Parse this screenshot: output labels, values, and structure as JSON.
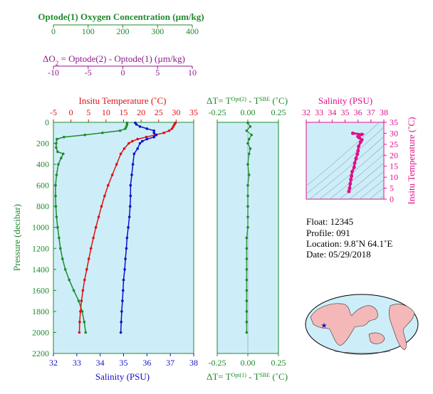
{
  "colors": {
    "oxygen": "#1e8a2c",
    "do2": "#8b1a8b",
    "temperature": "#e01010",
    "salinity": "#1010cc",
    "panel_bg": "#cdeef8",
    "ts": "#e0108a",
    "grid": "#8aa7b5"
  },
  "oxygen_axis": {
    "label": "Optode(1) Oxygen Concentration (µm/kg)",
    "ticks": [
      "0",
      "100",
      "200",
      "300",
      "400"
    ]
  },
  "do2_axis": {
    "label": "ΔO",
    "label_sub": "2",
    "label_rest": " = Optode(2) - Optode(1)    (µm/kg)",
    "ticks": [
      "-10",
      "-5",
      "0",
      "5",
      "10"
    ]
  },
  "temp_axis": {
    "label": "Insitu Temperature (˚C)",
    "ticks": [
      "-5",
      "0",
      "5",
      "10",
      "15",
      "20",
      "25",
      "30",
      "35"
    ]
  },
  "sal_axis": {
    "label": "Salinity (PSU)",
    "ticks": [
      "32",
      "33",
      "34",
      "35",
      "36",
      "37",
      "38"
    ]
  },
  "pressure_axis": {
    "label": "Pressure (decibar)",
    "ticks": [
      "0",
      "200",
      "400",
      "600",
      "800",
      "1000",
      "1200",
      "1400",
      "1600",
      "1800",
      "2000",
      "2200"
    ]
  },
  "dt_axis": {
    "top_prefix": "ΔT= T",
    "top_sup": "Opt(2)",
    "top_mid": " - T",
    "top_sup2": "SBE",
    "top_suffix": " (˚C)",
    "bottom_prefix": "ΔT= T",
    "bottom_sup": "Opt(1)",
    "bottom_mid": " - T",
    "bottom_sup2": "SBE",
    "bottom_suffix": " (˚C)",
    "ticks": [
      "-0.25",
      "0.00",
      "0.25"
    ]
  },
  "ts_axis": {
    "top_label": "Salinity (PSU)",
    "top_ticks": [
      "32",
      "33",
      "34",
      "35",
      "36",
      "37",
      "38"
    ],
    "right_label": "Insitu Temperature (˚C)",
    "right_ticks": [
      "0",
      "5",
      "10",
      "15",
      "20",
      "25",
      "30",
      "35"
    ]
  },
  "info": {
    "float": "Float:  12345",
    "profile": "Profile:  091",
    "location": "Location:  9.8˚N  64.1˚E",
    "date": "Date:  05/29/2018"
  },
  "chart_data": [
    {
      "type": "line",
      "name": "profile",
      "y_label": "Pressure (decibar)",
      "ylim": [
        2200,
        0
      ],
      "series": [
        {
          "name": "Optode(1) Oxygen Concentration (µm/kg)",
          "xlim": [
            0,
            400
          ],
          "pressure": [
            5,
            20,
            40,
            60,
            80,
            100,
            120,
            140,
            160,
            200,
            240,
            280,
            300,
            340,
            400,
            500,
            600,
            700,
            800,
            900,
            1000,
            1100,
            1200,
            1300,
            1400,
            1500,
            1600,
            1700,
            1800,
            1900,
            2000
          ],
          "values": [
            210,
            210,
            208,
            205,
            190,
            140,
            90,
            30,
            10,
            8,
            8,
            12,
            28,
            22,
            14,
            9,
            6,
            6,
            7,
            9,
            12,
            16,
            20,
            26,
            34,
            45,
            58,
            72,
            82,
            88,
            92
          ]
        },
        {
          "name": "Insitu Temperature (˚C)",
          "xlim": [
            -5,
            35
          ],
          "pressure": [
            5,
            20,
            40,
            60,
            80,
            100,
            120,
            140,
            160,
            180,
            200,
            250,
            300,
            400,
            500,
            600,
            700,
            800,
            900,
            1000,
            1100,
            1200,
            1300,
            1400,
            1500,
            1600,
            1700,
            1800,
            1900,
            2000
          ],
          "values": [
            29.8,
            29.5,
            29.2,
            28.8,
            28.0,
            26.5,
            24.0,
            21.5,
            19.0,
            17.5,
            16.5,
            15.2,
            14.2,
            13.0,
            11.8,
            10.6,
            9.6,
            8.7,
            7.9,
            7.1,
            6.4,
            5.7,
            5.1,
            4.5,
            3.9,
            3.4,
            3.0,
            2.7,
            2.5,
            2.4
          ]
        },
        {
          "name": "Salinity (PSU)",
          "xlim": [
            32,
            38
          ],
          "pressure": [
            5,
            20,
            40,
            60,
            80,
            100,
            120,
            140,
            160,
            180,
            200,
            250,
            300,
            400,
            500,
            600,
            700,
            800,
            900,
            1000,
            1100,
            1200,
            1300,
            1400,
            1500,
            1600,
            1700,
            1800,
            1900,
            2000
          ],
          "values": [
            35.5,
            35.55,
            35.7,
            36.0,
            36.3,
            36.3,
            36.4,
            36.3,
            36.0,
            35.8,
            35.7,
            35.6,
            35.45,
            35.4,
            35.35,
            35.3,
            35.3,
            35.28,
            35.25,
            35.2,
            35.15,
            35.12,
            35.08,
            35.05,
            35.0,
            34.98,
            34.95,
            34.92,
            34.9,
            34.88
          ]
        }
      ]
    },
    {
      "type": "line",
      "name": "delta_t",
      "xlim": [
        -0.25,
        0.25
      ],
      "ylim": [
        2200,
        0
      ],
      "series": [
        {
          "name": "Opt(1)",
          "pressure": [
            5,
            40,
            80,
            120,
            160,
            200,
            250,
            300,
            400,
            500,
            600,
            700,
            800,
            900,
            1000,
            1100,
            1200,
            1300,
            1400,
            1500,
            1600,
            1700,
            1800,
            1900,
            2000
          ],
          "values": [
            0.0,
            0.02,
            -0.01,
            0.03,
            0.01,
            0.0,
            0.02,
            0.01,
            0.0,
            0.01,
            0.0,
            0.0,
            0.0,
            0.0,
            0.0,
            -0.01,
            -0.01,
            -0.01,
            -0.01,
            -0.01,
            -0.01,
            -0.01,
            -0.01,
            -0.01,
            -0.01
          ]
        }
      ]
    },
    {
      "type": "scatter",
      "name": "ts_diagram",
      "x_label": "Salinity (PSU)",
      "y_label": "Insitu Temperature (˚C)",
      "xlim": [
        32,
        38
      ],
      "ylim": [
        0,
        35
      ],
      "points": [
        [
          35.3,
          3.5
        ],
        [
          35.35,
          5.0
        ],
        [
          35.4,
          7.0
        ],
        [
          35.45,
          9.0
        ],
        [
          35.5,
          10.5
        ],
        [
          35.55,
          12.5
        ],
        [
          35.7,
          14.5
        ],
        [
          35.75,
          16.5
        ],
        [
          35.85,
          18.5
        ],
        [
          35.95,
          20.5
        ],
        [
          36.0,
          22.0
        ],
        [
          36.05,
          24.0
        ],
        [
          36.2,
          26.0
        ],
        [
          36.3,
          27.0
        ],
        [
          36.1,
          28.0
        ],
        [
          36.0,
          28.5
        ],
        [
          36.3,
          29.5
        ],
        [
          35.6,
          30.0
        ]
      ]
    }
  ]
}
